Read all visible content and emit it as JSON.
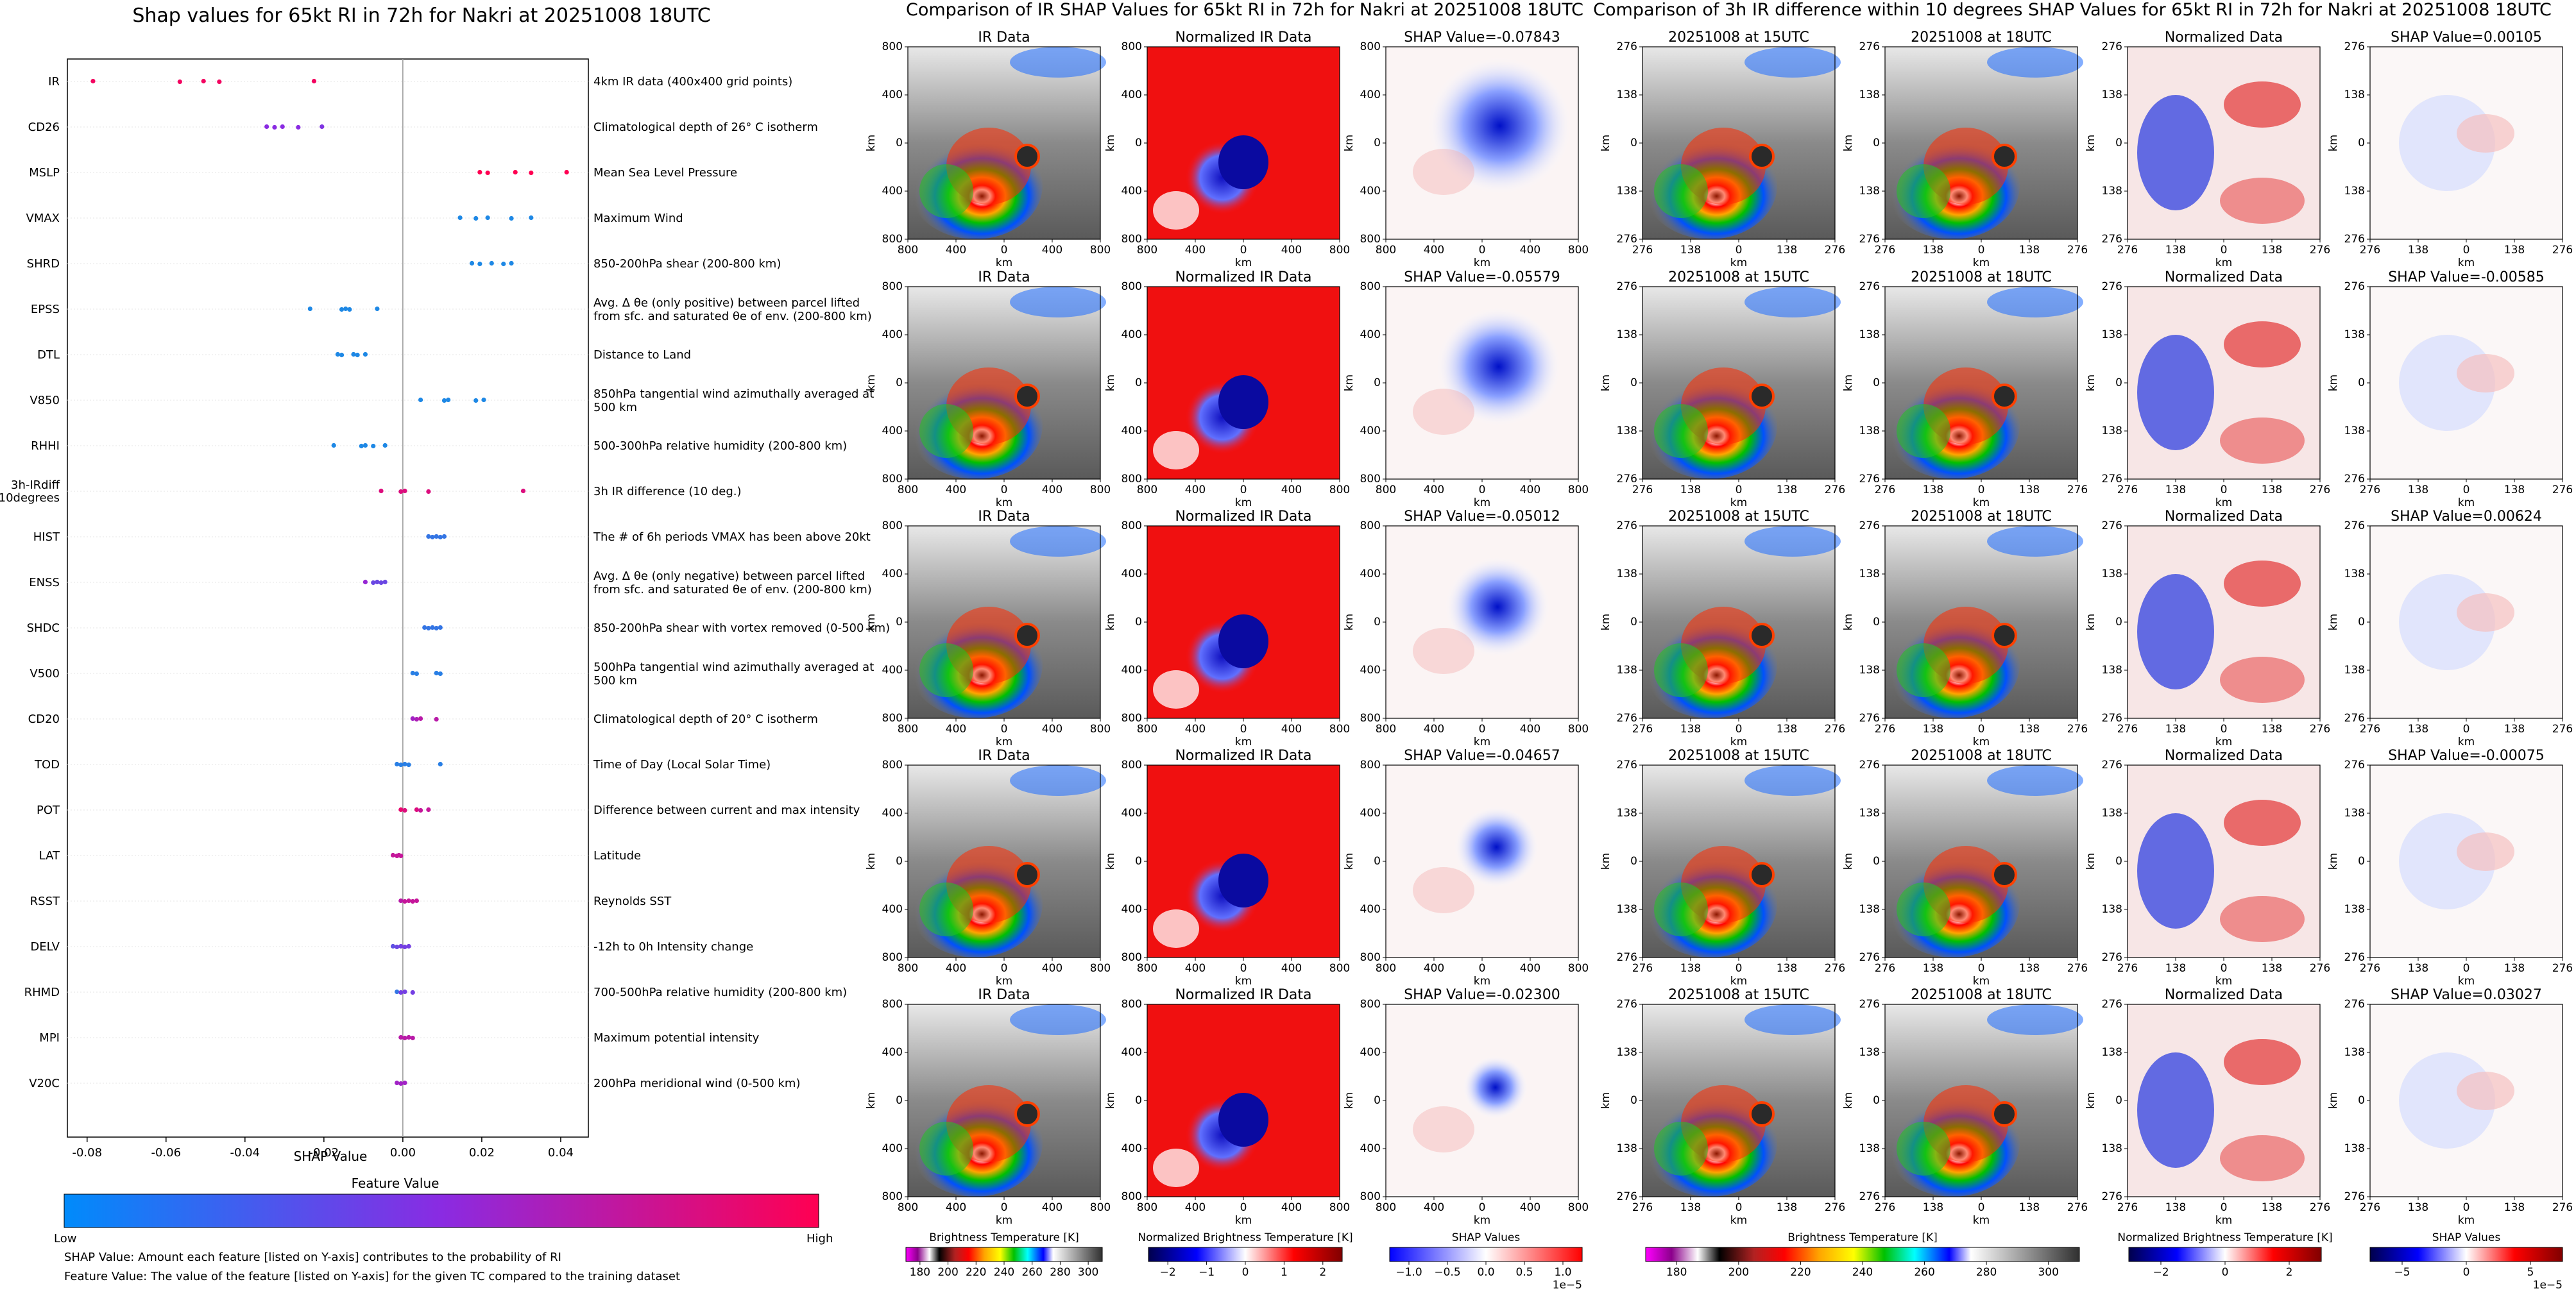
{
  "left_panel": {
    "title": "Shap values for 65kt RI in 72h for Nakri at 20251008 18UTC",
    "xlabel": "SHAP Value",
    "colorbar_title": "Feature Value",
    "colorbar_low": "Low",
    "colorbar_high": "High",
    "footnote_1": "SHAP Value: Amount each feature [listed on Y-axis] contributes to the probability of RI",
    "footnote_2": "Feature Value: The value of the feature [listed on Y-axis] for the given TC compared to the training dataset",
    "colors": {
      "low": "#1e88e5",
      "mid": "#8a2be2",
      "high": "#ff0052"
    }
  },
  "chart_data": {
    "type": "scatter",
    "xlim": [
      -0.085,
      0.047
    ],
    "xticks": [
      "-0.08",
      "-0.06",
      "-0.04",
      "-0.02",
      "0.00",
      "0.02",
      "0.04"
    ],
    "grid": false,
    "features": [
      {
        "name": "IR",
        "desc": "4km IR data (400x400 grid points)",
        "shap": [
          -0.0785,
          -0.0565,
          -0.0505,
          -0.0465,
          -0.0225
        ],
        "level": [
          0.95,
          0.95,
          0.95,
          0.95,
          0.95
        ]
      },
      {
        "name": "CD26",
        "desc": "Climatological depth of 26° C isotherm",
        "shap": [
          -0.0345,
          -0.0325,
          -0.0305,
          -0.0265,
          -0.0205
        ],
        "level": [
          0.5,
          0.5,
          0.5,
          0.5,
          0.45
        ]
      },
      {
        "name": "MSLP",
        "desc": "Mean Sea Level Pressure",
        "shap": [
          0.0195,
          0.0215,
          0.0285,
          0.0325,
          0.0415
        ],
        "level": [
          1,
          1,
          1,
          1,
          1
        ]
      },
      {
        "name": "VMAX",
        "desc": "Maximum Wind",
        "shap": [
          0.0145,
          0.0185,
          0.0215,
          0.0275,
          0.0325
        ],
        "level": [
          0,
          0,
          0,
          0,
          0
        ]
      },
      {
        "name": "SHRD",
        "desc": "850-200hPa shear (200-800 km)",
        "shap": [
          0.0175,
          0.0195,
          0.0225,
          0.0255,
          0.0275
        ],
        "level": [
          0,
          0,
          0,
          0,
          0
        ]
      },
      {
        "name": "EPSS",
        "desc": "Avg. Δ θe (only positive) between parcel lifted from sfc. and saturated θe of env. (200-800 km)",
        "shap": [
          -0.0235,
          -0.0155,
          -0.0145,
          -0.0135,
          -0.0065
        ],
        "level": [
          0,
          0,
          0,
          0,
          0
        ]
      },
      {
        "name": "DTL",
        "desc": "Distance to Land",
        "shap": [
          -0.0165,
          -0.0155,
          -0.0125,
          -0.0115,
          -0.0095
        ],
        "level": [
          0,
          0,
          0,
          0,
          0
        ]
      },
      {
        "name": "V850",
        "desc": "850hPa tangential wind azimuthally averaged at 500 km",
        "shap": [
          0.0045,
          0.0105,
          0.0115,
          0.0185,
          0.0205
        ],
        "level": [
          0,
          0,
          0,
          0,
          0
        ]
      },
      {
        "name": "RHHI",
        "desc": "500-300hPa relative humidity (200-800 km)",
        "shap": [
          -0.0175,
          -0.0105,
          -0.0095,
          -0.0075,
          -0.0045
        ],
        "level": [
          0,
          0,
          0,
          0,
          0
        ]
      },
      {
        "name": "3h-IRdiff 10degrees",
        "desc": "3h IR difference (10 deg.)",
        "shap": [
          -0.0055,
          -0.0005,
          0.0005,
          0.0065,
          0.0305
        ],
        "level": [
          0.85,
          0.85,
          0.85,
          0.85,
          0.85
        ]
      },
      {
        "name": "HIST",
        "desc": "The # of 6h periods VMAX has been above 20kt",
        "shap": [
          0.0065,
          0.0075,
          0.0085,
          0.0095,
          0.0105
        ],
        "level": [
          0.1,
          0.1,
          0.1,
          0.1,
          0.1
        ]
      },
      {
        "name": "ENSS",
        "desc": "Avg. Δ θe (only negative) between parcel lifted from sfc. and saturated θe of env. (200-800 km)",
        "shap": [
          -0.0095,
          -0.0075,
          -0.0065,
          -0.0055,
          -0.0045
        ],
        "level": [
          0.55,
          0.35,
          0.35,
          0.35,
          0.35
        ]
      },
      {
        "name": "SHDC",
        "desc": "850-200hPa shear with vortex removed (0-500 km)",
        "shap": [
          0.0055,
          0.0065,
          0.0075,
          0.0085,
          0.0095
        ],
        "level": [
          0.1,
          0.1,
          0.1,
          0.1,
          0.1
        ]
      },
      {
        "name": "V500",
        "desc": "500hPa tangential wind azimuthally averaged at 500 km",
        "shap": [
          0.0025,
          0.0035,
          0.0085,
          0.0095
        ],
        "level": [
          0.05,
          0.05,
          0.05,
          0.05
        ]
      },
      {
        "name": "CD20",
        "desc": "Climatological depth of 20° C isotherm",
        "shap": [
          0.0025,
          0.0035,
          0.0045,
          0.0085
        ],
        "level": [
          0.6,
          0.65,
          0.7,
          0.7
        ]
      },
      {
        "name": "TOD",
        "desc": "Time of Day (Local Solar Time)",
        "shap": [
          -0.0015,
          -0.0005,
          0.0005,
          0.0015,
          0.0095
        ],
        "level": [
          0.05,
          0.05,
          0.05,
          0.05,
          0.05
        ]
      },
      {
        "name": "POT",
        "desc": "Difference between current and max intensity",
        "shap": [
          -0.0005,
          0.0005,
          0.0035,
          0.0045,
          0.0065
        ],
        "level": [
          0.9,
          0.85,
          0.85,
          0.75,
          0.75
        ]
      },
      {
        "name": "LAT",
        "desc": "Latitude",
        "shap": [
          -0.0025,
          -0.0015,
          -0.001,
          -0.0005
        ],
        "level": [
          0.75,
          0.75,
          0.75,
          0.75
        ]
      },
      {
        "name": "RSST",
        "desc": "Reynolds SST",
        "shap": [
          -0.0005,
          0.0005,
          0.0015,
          0.0025,
          0.0035
        ],
        "level": [
          0.7,
          0.75,
          0.75,
          0.75,
          0.75
        ]
      },
      {
        "name": "DELV",
        "desc": "-12h to 0h Intensity change",
        "shap": [
          -0.0025,
          -0.0015,
          -0.0005,
          0.0005,
          0.0015
        ],
        "level": [
          0.3,
          0.35,
          0.4,
          0.4,
          0.4
        ]
      },
      {
        "name": "RHMD",
        "desc": "700-500hPa relative humidity (200-800 km)",
        "shap": [
          -0.0015,
          -0.0005,
          0.0005,
          0.0025
        ],
        "level": [
          0.1,
          0.4,
          0.4,
          0.4
        ]
      },
      {
        "name": "MPI",
        "desc": "Maximum potential intensity",
        "shap": [
          -0.0005,
          0.0005,
          0.0015,
          0.0025
        ],
        "level": [
          0.7,
          0.7,
          0.7,
          0.7
        ]
      },
      {
        "name": "V20C",
        "desc": "200hPa meridional wind (0-500 km)",
        "shap": [
          -0.0015,
          -0.0005,
          0.0005
        ],
        "level": [
          0.6,
          0.6,
          0.6
        ]
      }
    ]
  },
  "ir_section": {
    "title": "Comparison of IR SHAP Values for 65kt RI in 72h for Nakri at 20251008 18UTC",
    "col_titles": [
      "IR Data",
      "Normalized IR Data"
    ],
    "shap_titles": [
      "SHAP Value=-0.07843",
      "SHAP Value=-0.05579",
      "SHAP Value=-0.05012",
      "SHAP Value=-0.04657",
      "SHAP Value=-0.02300"
    ],
    "yticks": [
      "800",
      "400",
      "0",
      "400",
      "800"
    ],
    "xticks": [
      "800",
      "400",
      "0",
      "400",
      "800"
    ],
    "axis_unit": "km",
    "colorbars": [
      {
        "label": "Brightness Temperature [K]",
        "ticks": [
          "180",
          "200",
          "220",
          "240",
          "260",
          "280",
          "300"
        ]
      },
      {
        "label": "Normalized Brightness Temperature [K]",
        "ticks": [
          "−2",
          "−1",
          "0",
          "1",
          "2"
        ]
      },
      {
        "label": "SHAP Values",
        "ticks": [
          "−1.0",
          "−0.5",
          "0.0",
          "0.5",
          "1.0"
        ],
        "exp": "1e−5"
      }
    ]
  },
  "diff_section": {
    "title": "Comparison of 3h IR difference within 10 degrees SHAP Values for 65kt RI in 72h for Nakri at 20251008 18UTC",
    "col_titles": [
      "20251008 at 15UTC",
      "20251008 at 18UTC",
      "Normalized Data"
    ],
    "shap_titles": [
      "SHAP Value=0.00105",
      "SHAP Value=-0.00585",
      "SHAP Value=0.00624",
      "SHAP Value=-0.00075",
      "SHAP Value=0.03027"
    ],
    "yticks": [
      "276",
      "138",
      "0",
      "138",
      "276"
    ],
    "xticks": [
      "276",
      "138",
      "0",
      "138",
      "276"
    ],
    "axis_unit": "km",
    "colorbars": [
      {
        "label": "Brightness Temperature [K]",
        "ticks": [
          "180",
          "200",
          "220",
          "240",
          "260",
          "280",
          "300"
        ]
      },
      {
        "label": "Normalized Brightness Temperature [K]",
        "ticks": [
          "−2",
          "0",
          "2"
        ]
      },
      {
        "label": "SHAP Values",
        "ticks": [
          "−5",
          "0",
          "5"
        ],
        "exp": "1e−5"
      }
    ]
  }
}
